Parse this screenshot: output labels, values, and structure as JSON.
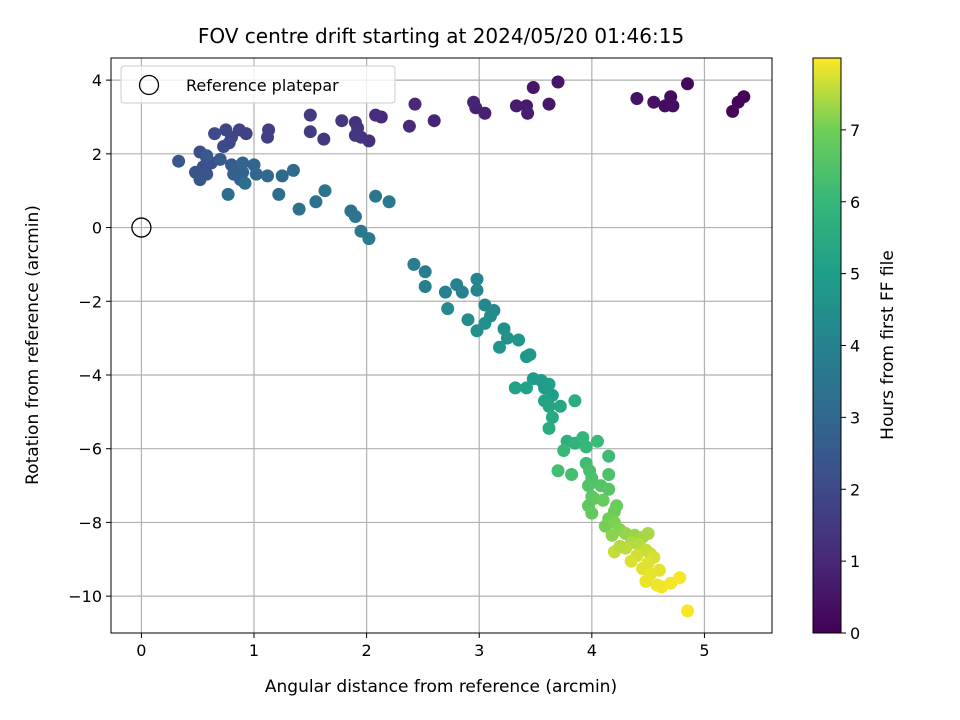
{
  "chart_data": {
    "type": "scatter",
    "title": "FOV centre drift starting at 2024/05/20 01:46:15",
    "xlabel": "Angular distance from reference (arcmin)",
    "ylabel": "Rotation from reference (arcmin)",
    "xlim": [
      -0.27,
      5.6
    ],
    "ylim": [
      -11.0,
      4.6
    ],
    "xticks": [
      0,
      1,
      2,
      3,
      4,
      5
    ],
    "yticks": [
      4,
      2,
      0,
      -2,
      -4,
      -6,
      -8,
      -10
    ],
    "xtick_labels": [
      "0",
      "1",
      "2",
      "3",
      "4",
      "5"
    ],
    "ytick_labels": [
      "4",
      "2",
      "0",
      "−2",
      "−4",
      "−6",
      "−8",
      "−10"
    ],
    "grid": true,
    "legend": {
      "placement": "top-left",
      "entries": [
        "Reference platepar"
      ]
    },
    "reference_point": {
      "x": 0,
      "y": 0
    },
    "colorbar": {
      "label": "Hours from first FF file",
      "colormap": "viridis",
      "range": [
        0,
        8
      ],
      "ticks": [
        0,
        1,
        2,
        3,
        4,
        5,
        6,
        7
      ],
      "tick_labels": [
        "0",
        "1",
        "2",
        "3",
        "4",
        "5",
        "6",
        "7"
      ]
    },
    "points": [
      [
        5.35,
        3.55,
        0.05
      ],
      [
        5.3,
        3.4,
        0.1
      ],
      [
        5.25,
        3.15,
        0.15
      ],
      [
        4.85,
        3.9,
        0.2
      ],
      [
        4.7,
        3.55,
        0.25
      ],
      [
        4.65,
        3.3,
        0.3
      ],
      [
        4.72,
        3.3,
        0.35
      ],
      [
        4.55,
        3.4,
        0.4
      ],
      [
        4.4,
        3.5,
        0.45
      ],
      [
        3.7,
        3.95,
        0.5
      ],
      [
        3.48,
        3.8,
        0.55
      ],
      [
        3.62,
        3.35,
        0.6
      ],
      [
        3.42,
        3.3,
        0.65
      ],
      [
        3.33,
        3.3,
        0.7
      ],
      [
        3.43,
        3.1,
        0.75
      ],
      [
        3.05,
        3.1,
        0.8
      ],
      [
        2.97,
        3.25,
        0.85
      ],
      [
        2.95,
        3.4,
        0.9
      ],
      [
        2.6,
        2.9,
        0.95
      ],
      [
        2.43,
        3.35,
        1.0
      ],
      [
        2.38,
        2.75,
        1.05
      ],
      [
        2.13,
        3.0,
        1.1
      ],
      [
        2.08,
        3.05,
        1.15
      ],
      [
        2.02,
        2.35,
        1.2
      ],
      [
        1.95,
        2.45,
        1.25
      ],
      [
        1.9,
        2.85,
        1.3
      ],
      [
        1.92,
        2.7,
        1.35
      ],
      [
        1.78,
        2.9,
        1.4
      ],
      [
        1.9,
        2.5,
        1.45
      ],
      [
        1.62,
        2.4,
        1.5
      ],
      [
        1.5,
        3.05,
        1.55
      ],
      [
        1.5,
        2.6,
        1.6
      ],
      [
        1.13,
        2.65,
        1.65
      ],
      [
        1.12,
        2.45,
        1.7
      ],
      [
        0.93,
        2.55,
        1.75
      ],
      [
        0.87,
        2.65,
        1.8
      ],
      [
        0.8,
        2.45,
        1.85
      ],
      [
        0.75,
        2.65,
        1.9
      ],
      [
        0.78,
        2.3,
        1.95
      ],
      [
        0.65,
        2.55,
        2.0
      ],
      [
        0.73,
        2.2,
        2.05
      ],
      [
        0.52,
        2.05,
        2.1
      ],
      [
        0.58,
        1.9,
        2.15
      ],
      [
        0.62,
        1.75,
        2.2
      ],
      [
        0.55,
        1.65,
        2.25
      ],
      [
        0.48,
        1.5,
        2.3
      ],
      [
        0.58,
        1.45,
        2.35
      ],
      [
        0.52,
        1.3,
        2.4
      ],
      [
        0.33,
        1.8,
        2.45
      ],
      [
        0.58,
        1.95,
        2.5
      ],
      [
        0.7,
        1.85,
        2.55
      ],
      [
        0.8,
        1.7,
        2.6
      ],
      [
        0.85,
        1.6,
        2.65
      ],
      [
        0.82,
        1.45,
        2.7
      ],
      [
        0.9,
        1.5,
        2.75
      ],
      [
        0.88,
        1.3,
        2.8
      ],
      [
        0.9,
        1.75,
        2.85
      ],
      [
        1.0,
        1.7,
        2.9
      ],
      [
        1.02,
        1.45,
        2.95
      ],
      [
        1.12,
        1.4,
        3.0
      ],
      [
        1.25,
        1.4,
        3.05
      ],
      [
        1.35,
        1.55,
        3.1
      ],
      [
        1.22,
        0.9,
        3.15
      ],
      [
        0.77,
        0.9,
        3.2
      ],
      [
        0.92,
        1.2,
        3.25
      ],
      [
        1.4,
        0.5,
        3.3
      ],
      [
        1.55,
        0.7,
        3.35
      ],
      [
        1.63,
        1.0,
        3.4
      ],
      [
        1.86,
        0.45,
        3.45
      ],
      [
        1.9,
        0.3,
        3.5
      ],
      [
        2.08,
        0.85,
        3.55
      ],
      [
        2.2,
        0.7,
        3.6
      ],
      [
        1.95,
        -0.1,
        3.65
      ],
      [
        2.02,
        -0.3,
        3.7
      ],
      [
        2.42,
        -1.0,
        3.8
      ],
      [
        2.52,
        -1.2,
        3.85
      ],
      [
        2.52,
        -1.6,
        3.9
      ],
      [
        2.7,
        -1.75,
        3.95
      ],
      [
        2.8,
        -1.55,
        4.0
      ],
      [
        2.85,
        -1.75,
        4.05
      ],
      [
        2.98,
        -1.4,
        4.1
      ],
      [
        2.98,
        -1.7,
        4.15
      ],
      [
        3.05,
        -2.1,
        4.2
      ],
      [
        3.13,
        -2.25,
        4.25
      ],
      [
        2.72,
        -2.2,
        4.3
      ],
      [
        2.9,
        -2.5,
        4.35
      ],
      [
        3.1,
        -2.4,
        4.4
      ],
      [
        3.05,
        -2.6,
        4.45
      ],
      [
        2.98,
        -2.8,
        4.5
      ],
      [
        3.22,
        -2.75,
        4.55
      ],
      [
        3.25,
        -3.0,
        4.6
      ],
      [
        3.18,
        -3.25,
        4.65
      ],
      [
        3.35,
        -3.05,
        4.7
      ],
      [
        3.42,
        -3.5,
        4.75
      ],
      [
        3.45,
        -3.45,
        4.8
      ],
      [
        3.48,
        -4.1,
        4.85
      ],
      [
        3.55,
        -4.15,
        4.9
      ],
      [
        3.58,
        -4.35,
        4.95
      ],
      [
        3.62,
        -4.25,
        5.0
      ],
      [
        3.65,
        -4.55,
        5.05
      ],
      [
        3.32,
        -4.35,
        5.1
      ],
      [
        3.42,
        -4.35,
        5.15
      ],
      [
        3.58,
        -4.7,
        5.2
      ],
      [
        3.62,
        -4.85,
        5.25
      ],
      [
        3.72,
        -4.85,
        5.3
      ],
      [
        3.65,
        -5.15,
        5.4
      ],
      [
        3.62,
        -5.45,
        5.5
      ],
      [
        3.85,
        -4.7,
        5.6
      ],
      [
        3.78,
        -5.8,
        5.7
      ],
      [
        3.85,
        -5.85,
        5.8
      ],
      [
        3.92,
        -5.7,
        5.9
      ],
      [
        3.95,
        -5.95,
        6.0
      ],
      [
        3.75,
        -6.05,
        6.05
      ],
      [
        4.05,
        -5.8,
        6.1
      ],
      [
        4.15,
        -6.2,
        6.15
      ],
      [
        3.95,
        -6.4,
        6.2
      ],
      [
        3.7,
        -6.6,
        6.25
      ],
      [
        3.82,
        -6.7,
        6.3
      ],
      [
        3.98,
        -6.6,
        6.35
      ],
      [
        4.0,
        -6.8,
        6.4
      ],
      [
        4.15,
        -6.7,
        6.45
      ],
      [
        3.97,
        -7.0,
        6.5
      ],
      [
        4.08,
        -7.0,
        6.55
      ],
      [
        4.15,
        -7.1,
        6.6
      ],
      [
        4.0,
        -7.3,
        6.65
      ],
      [
        3.97,
        -7.55,
        6.7
      ],
      [
        4.02,
        -7.35,
        6.75
      ],
      [
        4.0,
        -7.75,
        6.8
      ],
      [
        4.1,
        -7.4,
        6.85
      ],
      [
        4.22,
        -7.55,
        6.9
      ],
      [
        4.2,
        -7.7,
        6.95
      ],
      [
        4.15,
        -7.9,
        7.0
      ],
      [
        4.12,
        -8.1,
        7.05
      ],
      [
        4.2,
        -8.0,
        7.1
      ],
      [
        4.25,
        -8.2,
        7.15
      ],
      [
        4.18,
        -8.35,
        7.2
      ],
      [
        4.3,
        -8.3,
        7.25
      ],
      [
        4.38,
        -8.35,
        7.3
      ],
      [
        4.45,
        -8.4,
        7.35
      ],
      [
        4.5,
        -8.3,
        7.4
      ],
      [
        4.35,
        -8.55,
        7.45
      ],
      [
        4.42,
        -8.6,
        7.5
      ],
      [
        4.3,
        -8.7,
        7.55
      ],
      [
        4.48,
        -8.75,
        7.6
      ],
      [
        4.52,
        -8.85,
        7.65
      ],
      [
        4.4,
        -8.9,
        7.7
      ],
      [
        4.55,
        -8.95,
        7.72
      ],
      [
        4.35,
        -9.05,
        7.75
      ],
      [
        4.5,
        -9.1,
        7.78
      ],
      [
        4.45,
        -9.25,
        7.8
      ],
      [
        4.6,
        -9.3,
        7.82
      ],
      [
        4.52,
        -9.4,
        7.85
      ],
      [
        4.48,
        -9.6,
        7.88
      ],
      [
        4.58,
        -9.7,
        7.9
      ],
      [
        4.62,
        -9.75,
        7.92
      ],
      [
        4.7,
        -9.65,
        7.94
      ],
      [
        4.78,
        -9.5,
        7.95
      ],
      [
        4.85,
        -10.4,
        7.97
      ],
      [
        4.2,
        -8.8,
        7.6
      ],
      [
        4.25,
        -8.65,
        7.5
      ]
    ]
  }
}
